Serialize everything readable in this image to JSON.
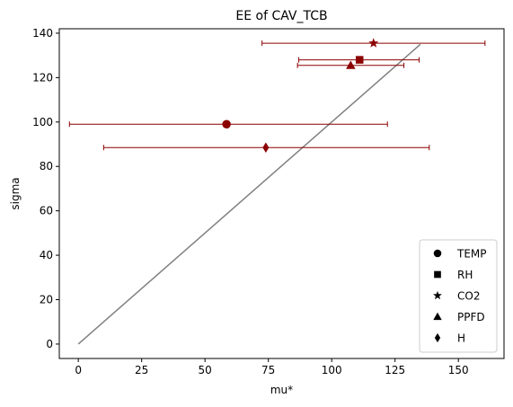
{
  "chart_data": {
    "type": "scatter",
    "title": "EE of CAV_TCB",
    "xlabel": "mu*",
    "ylabel": "sigma",
    "xlim": [
      -7.5,
      168
    ],
    "ylim": [
      -6.5,
      142
    ],
    "xticks": [
      0,
      25,
      50,
      75,
      100,
      125,
      150
    ],
    "yticks": [
      0,
      20,
      40,
      60,
      80,
      100,
      120,
      140
    ],
    "grid": false,
    "legend_position": "lower-right",
    "marker_color": "#8b0000",
    "errorbar_color": "#8b0000",
    "reference_line": {
      "color": "#808080",
      "x": [
        0,
        135
      ],
      "y": [
        0,
        135
      ]
    },
    "series": [
      {
        "name": "TEMP",
        "marker": "circle",
        "x": 58.5,
        "y": 99,
        "xerr_low": -3.5,
        "xerr_high": 122
      },
      {
        "name": "RH",
        "marker": "square",
        "x": 111,
        "y": 128,
        "xerr_low": 87,
        "xerr_high": 134.5
      },
      {
        "name": "CO2",
        "marker": "star",
        "x": 116.5,
        "y": 135.5,
        "xerr_low": 72.5,
        "xerr_high": 160.5
      },
      {
        "name": "PPFD",
        "marker": "triangle",
        "x": 107.5,
        "y": 125.5,
        "xerr_low": 86.5,
        "xerr_high": 128.5
      },
      {
        "name": "H",
        "marker": "diamond",
        "x": 74,
        "y": 88.5,
        "xerr_low": 10,
        "xerr_high": 138.5
      }
    ]
  }
}
